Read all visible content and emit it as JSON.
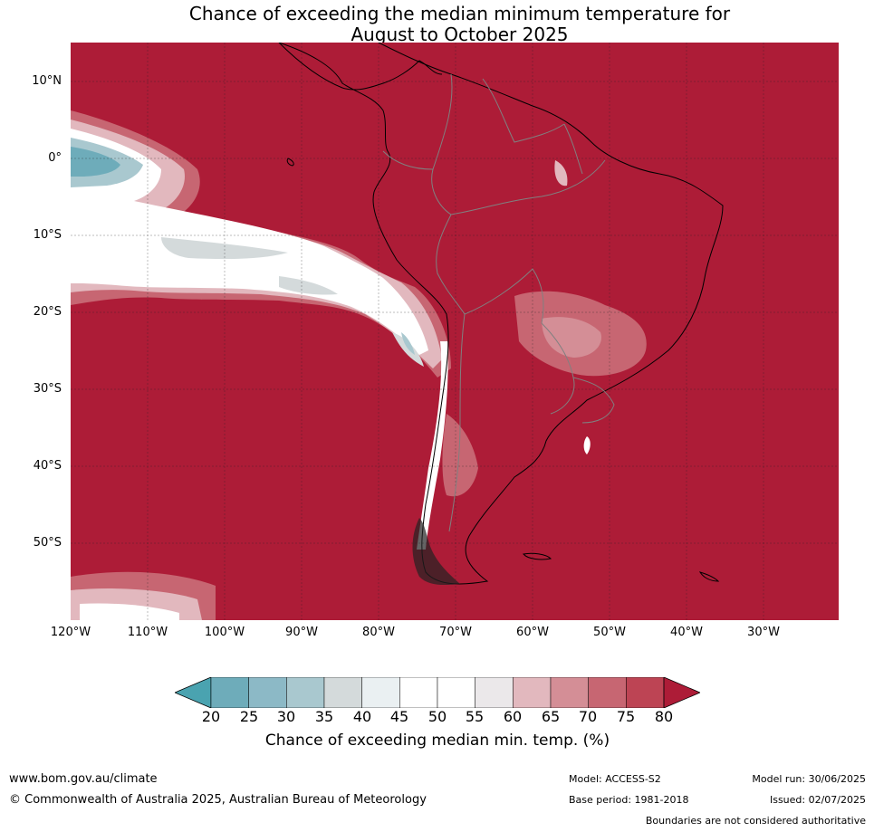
{
  "title": {
    "line1": "Chance of exceeding the median minimum temperature for",
    "line2": "August to October 2025"
  },
  "axes": {
    "lat_labels": [
      "10°N",
      "0°",
      "10°S",
      "20°S",
      "30°S",
      "40°S",
      "50°S"
    ],
    "lon_labels": [
      "120°W",
      "110°W",
      "100°W",
      "90°W",
      "80°W",
      "70°W",
      "60°W",
      "50°W",
      "40°W",
      "30°W"
    ]
  },
  "colorbar": {
    "ticks": [
      "20",
      "25",
      "30",
      "35",
      "40",
      "45",
      "50",
      "55",
      "60",
      "65",
      "70",
      "75",
      "80"
    ],
    "colors": [
      "#4aa3b0",
      "#6eacba",
      "#8cb9c6",
      "#a9c8cf",
      "#d4dadb",
      "#eaf0f2",
      "#ffffff",
      "#ffffff",
      "#ebe8ea",
      "#e2b8be",
      "#d48e96",
      "#c76672",
      "#bd4454",
      "#ad1c37"
    ],
    "label": "Chance of exceeding median min. temp. (%)"
  },
  "map_colors": {
    "ocean_high": "#ad1c37",
    "coast": "#000000",
    "borders": "#808080",
    "grid": "#222222"
  },
  "footer": {
    "website": "www.bom.gov.au/climate",
    "copyright": "© Commonwealth of Australia 2025, Australian Bureau of Meteorology",
    "model": "Model: ACCESS-S2",
    "base_period": "Base period: 1981-2018",
    "model_run": "Model run: 30/06/2025",
    "issued": "Issued: 02/07/2025",
    "disclaimer": "Boundaries are not considered authoritative"
  }
}
